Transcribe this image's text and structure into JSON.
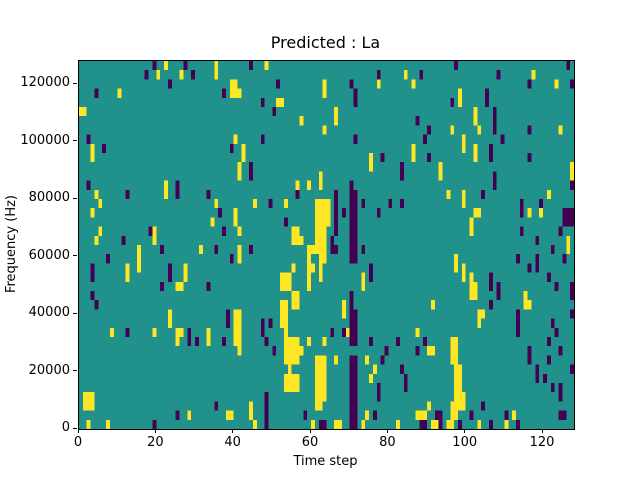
{
  "figure": {
    "title": "Predicted : La",
    "background_color": "#ffffff"
  },
  "chart_data": {
    "type": "heatmap",
    "title": "Predicted : La",
    "xlabel": "Time step",
    "ylabel": "Frequency (Hz)",
    "x_range": [
      0,
      128
    ],
    "y_range": [
      0,
      128000
    ],
    "x_ticks": [
      0,
      20,
      40,
      60,
      80,
      100,
      120
    ],
    "y_ticks": [
      0,
      20000,
      40000,
      60000,
      80000,
      100000,
      120000
    ],
    "grid_shape_rows_cols": [
      40,
      128
    ],
    "legend": "none",
    "grid_on": false,
    "colormap_name": "viridis",
    "colormap": {
      "t": "#21918c",
      "y": "#fde725",
      "p": "#440154"
    },
    "cell_value_meaning": {
      "t": "mid/background",
      "y": "high",
      "p": "low"
    },
    "rows_top_to_bottom": [
      "19t1p2t1y4t1p7t1y8t1p3t1y48t1p28t1p1t",
      "17t1p2t1y5t1y2t1p5t1y41t1p6t1y3t1p19t1p8t1y10t",
      "23t1p15t2y10t1p11t1y6t1p6t1y8t1y29t1p6t1y3t1p",
      "4t1p5t1y26t1p1t3y21t1y7t1p26t1y6t1p22t",
      "47t1p3t2y18t1p24t1p1t1y6t1p22t",
      "2y48t1p15t1y35t1y4t1p20t",
      "57t1y8t1y20t1p14t1y4t1p20t",
      "63t1y26t1p5t1y6t1y3t1p8t1p7t1y3t",
      "2t1p37t1y6t1p23t1p17t1p9t1y9t1p18t",
      "3t1y2t1p32t1p2t1y43t1y12t1y2t1y3t1p21t",
      "3t1y38t1y32t1y2t1p7t1y3t1p11t1y3t1p9t1p11t",
      "41t1y2t1p30t1y7t1p9t1y33t1y",
      "41t1y2t1p17t1y20t1p9t1y13t1p19t1y",
      "2t1p19t1y2t1p30t1y2t1y2t1y7t1p36t1p19t1p",
      "4t1y7t1p9t1y2t1p7t1p22t1p9t1p3t2p23t1y3t1y4t1p16t1y6t",
      "5t1y29t1y9t1y3t1p3t1y7t4y1t1p3t2p1t1p6t1p2t1p15t1y14t1p4t1p8t",
      "3t1y32t1p3t1y20t4y1t1p1t1p1t2p5t1p24t2y10t1p1t1y2t1y5t3p",
      "34t1y5t1y12t1p7t4y1t1p3t2p29t1y23t3p",
      "5t1y12t1p1y17t1p3t1y13t2y4t3y2t1p3t2p29t1y12t1p9t1p3t",
      "4t1y6t1p7t1y35t3y3t3y1t1p4t2p46t1p7t1y1t",
      "15t1y5t1p9t1y3t1p5t1y2t1p14t5y1t2p3t2p1t1p48t1p3t1y1t",
      "7t1p7t1y23t1p1t1y17t1y2t2y6t2p25t1y15t1p4t1p6t1p2t",
      "3t1p8t1y2t1y7t1p3t1y27t1y3t2y1t1y12t1p21t1y1t1y16t1p1t1p9t",
      "3t1p8t1y10t1p3t1y24t3y4t1y2t1y10t1y1t1p23t1y1t1y4t1p14t1p6t",
      "21t1p3t2y6t1p18t3y4t1y13t1y27t2y3t1p1t1p14t1p3t1p",
      "3t1p51t2y13t1p30t2y5t1p6t1y11t1p",
      "4t1p47t2y1t2y11t1y1t1p20t1y14t1p8t2y11t",
      "23t1y14t1p1t2y10t2y14t1y1t2p31t2y8t1p13t1p",
      "23t1y14t1p1t2y5t1p1t1p2t2y16t2p31t1y9t1p8t1p5t",
      "8t1y3t1p6t1y5t2y1t1p4t1y6t2y5t1p5t1y11t1p2t1p1y2p15t1y25t1p9t1p4t",
      "25t1y2t1p1t1p2t1y3t1p2t2y6t1p4t4y2t1y3t1y6t2p3t1p6t1p6t1p6t2y23t1p6t",
      "41t1y8t1p2t5y21t1p7t1p2t2y4t2y18t1p7t1p3t",
      "53t4y4t3y2t1y3t2p2t1y3t1p17t2y18t1p4t1p6t",
      "54t1y6t3y6t2p4t1y6t1p13t2y19t1p8t1p",
      "53t4y4t3y6t2p3t1y8t1p12t2y19t1p1t1p7t",
      "53t4y4t3y6t2p5t1p6t1p12t2y23t1p1t1p3t",
      "1t3y44t1p12t3y6t2p5t1p19t3y24t1p3t",
      "1t3y31t1p8t1y3t1p12t2y7t2p18t1y5t4y4t1p23t",
      "25t1p2t1y9t2y4t1y3t1p9t1p11t2p2t1y1t1p10t3y2t2p2t2y3t1p8t1p1t1y11t2p2t",
      "2t1y4t1y11t1p25t1y2t1p11t1y1t2p2t2y2t2p1t1y8t1y5t2p1t2y1p1t2y1t1p4t1y2t1p3t1y2t1p14t"
    ]
  }
}
